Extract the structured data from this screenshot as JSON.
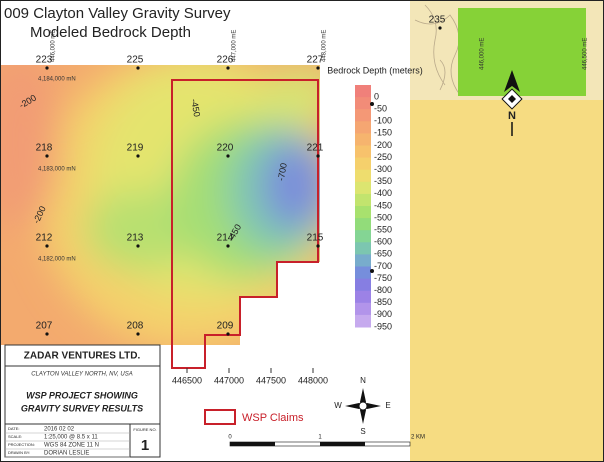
{
  "title": {
    "line1": "009 Clayton Valley Gravity Survey",
    "line2": "Modeled Bedrock Depth"
  },
  "stations": [
    "223",
    "225",
    "226",
    "227",
    "218",
    "219",
    "220",
    "221",
    "212",
    "213",
    "214",
    "215",
    "207",
    "208",
    "209",
    "235"
  ],
  "northings": [
    "4,184,000 mN",
    "4,183,000 mN",
    "4,182,000 mN"
  ],
  "top_eastings": [
    "446,000 mE",
    "447,000 mE",
    "448,000 mE"
  ],
  "right_eastings": [
    "446,000 mE",
    "446,500 mE"
  ],
  "contour_labels": [
    -200,
    -450,
    -200,
    -700,
    -450
  ],
  "eastings": [
    446500,
    447000,
    447500,
    448000
  ],
  "legend": {
    "title": "Bedrock Depth (meters)",
    "items": [
      {
        "value": 0,
        "color": "#f0807a"
      },
      {
        "value": -50,
        "color": "#f28c78"
      },
      {
        "value": -100,
        "color": "#f49876"
      },
      {
        "value": -150,
        "color": "#f5a672"
      },
      {
        "value": -200,
        "color": "#f6b46e"
      },
      {
        "value": -250,
        "color": "#f7c26c"
      },
      {
        "value": -300,
        "color": "#f5d06c"
      },
      {
        "value": -350,
        "color": "#eedd6e"
      },
      {
        "value": -400,
        "color": "#dce570"
      },
      {
        "value": -450,
        "color": "#c2e46e"
      },
      {
        "value": -500,
        "color": "#a8e16e"
      },
      {
        "value": -550,
        "color": "#92dc7a"
      },
      {
        "value": -600,
        "color": "#84d594"
      },
      {
        "value": -650,
        "color": "#7cc6b0"
      },
      {
        "value": -700,
        "color": "#78accc"
      },
      {
        "value": -750,
        "color": "#768edc"
      },
      {
        "value": -800,
        "color": "#867ee2"
      },
      {
        "value": -850,
        "color": "#9c82e6"
      },
      {
        "value": -900,
        "color": "#b294ea"
      },
      {
        "value": -950,
        "color": "#c6aaee"
      }
    ]
  },
  "claims_legend": "WSP Claims",
  "scale_bar": [
    "0",
    "1",
    "2 KM"
  ],
  "compass": {
    "n": "N",
    "s": "S",
    "e": "E",
    "w": "W"
  },
  "north_arrow": "N",
  "title_block": {
    "company": "ZADAR VENTURES LTD.",
    "location": "CLAYTON VALLEY NORTH, NV, USA",
    "heading1": "WSP PROJECT SHOWING",
    "heading2": "GRAVITY SURVEY RESULTS",
    "rows": [
      [
        "DATE:",
        "2016 02 02"
      ],
      [
        "SCALE:",
        "1:25,000 @ 8.5 x 11"
      ],
      [
        "PROJECTION:",
        "WGS 84 ZONE 11 N"
      ],
      [
        "DRAWN BY:",
        "DORIAN LESLIE"
      ]
    ],
    "figure_label": "FIGURE NO.",
    "figure_no": "1"
  }
}
